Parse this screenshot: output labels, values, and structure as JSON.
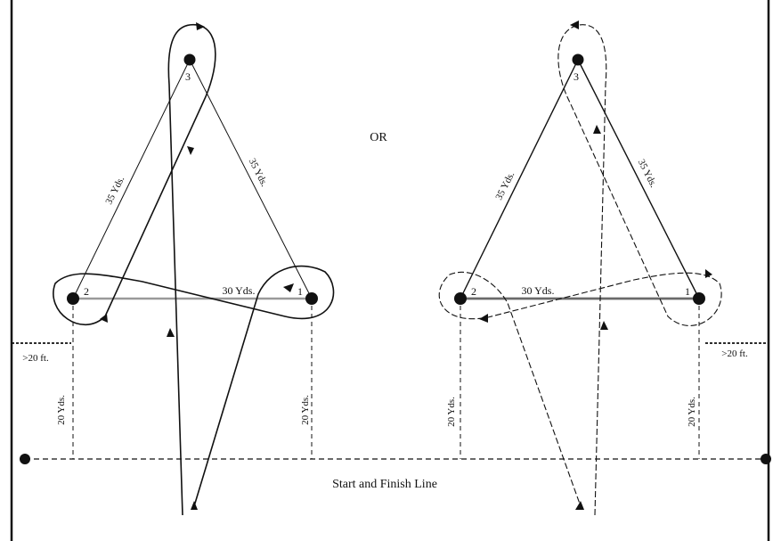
{
  "separator_label": "OR",
  "caption": "Start and Finish Line",
  "left_pattern": {
    "barrels": [
      {
        "number": "1"
      },
      {
        "number": "2"
      },
      {
        "number": "3"
      }
    ],
    "distances": {
      "side_left": "35 Yds.",
      "side_right": "35 Yds.",
      "base": "30 Yds.",
      "barrel2_to_line": "20 Yds.",
      "barrel1_to_line": "20 Yds.",
      "fence_gap": ">20 ft."
    }
  },
  "right_pattern": {
    "barrels": [
      {
        "number": "1"
      },
      {
        "number": "2"
      },
      {
        "number": "3"
      }
    ],
    "distances": {
      "side_left": "35 Yds.",
      "side_right": "35 Yds.",
      "base": "30 Yds.",
      "barrel2_to_line": "20 Yds.",
      "barrel1_to_line": "20 Yds.",
      "fence_gap": ">20 ft."
    }
  },
  "colors": {
    "ink": "#111111",
    "base_line_left": "#9a9a9a",
    "base_line_right": "#6a6a6a"
  }
}
